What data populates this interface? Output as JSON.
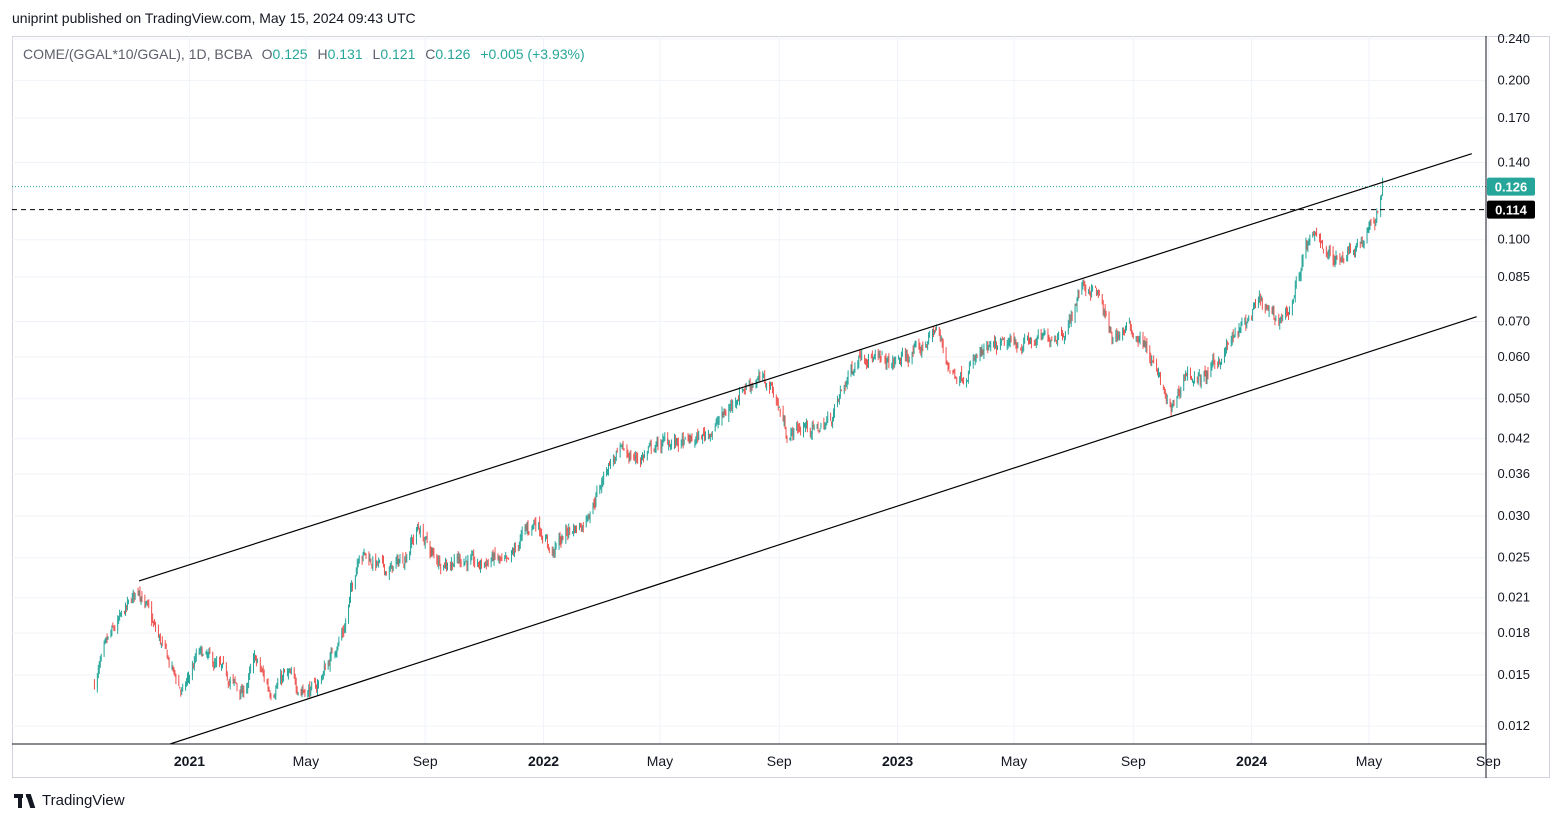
{
  "header": {
    "published_text": "uniprint published on TradingView.com, May 15, 2024 09:43 UTC"
  },
  "legend": {
    "symbol": "COME/(GGAL*10/GGAL), 1D, BCBA",
    "o_label": "O",
    "o_value": "0.125",
    "h_label": "H",
    "h_value": "0.131",
    "l_label": "L",
    "l_value": "0.121",
    "c_label": "C",
    "c_value": "0.126",
    "change": "+0.005 (+3.93%)"
  },
  "price_labels": {
    "last": {
      "text": "0.126",
      "value": 0.126,
      "color": "#26a69a"
    },
    "line": {
      "text": "0.114",
      "value": 0.114,
      "color": "#000000"
    }
  },
  "chart_data": {
    "type": "candlestick",
    "scale": "log",
    "ylim": [
      0.0111,
      0.243
    ],
    "xlim": [
      "2020-09-25",
      "2024-09-01"
    ],
    "y_ticks": [
      "0.240",
      "0.200",
      "0.170",
      "0.140",
      "0.100",
      "0.085",
      "0.070",
      "0.060",
      "0.050",
      "0.042",
      "0.036",
      "0.030",
      "0.025",
      "0.021",
      "0.018",
      "0.015",
      "0.012"
    ],
    "x_ticks": [
      {
        "label": "2021",
        "date": "2021-01-01",
        "bold": true
      },
      {
        "label": "May",
        "date": "2021-05-01",
        "bold": false
      },
      {
        "label": "Sep",
        "date": "2021-09-01",
        "bold": false
      },
      {
        "label": "2022",
        "date": "2022-01-01",
        "bold": true
      },
      {
        "label": "May",
        "date": "2022-05-01",
        "bold": false
      },
      {
        "label": "Sep",
        "date": "2022-09-01",
        "bold": false
      },
      {
        "label": "2023",
        "date": "2023-01-01",
        "bold": true
      },
      {
        "label": "May",
        "date": "2023-05-01",
        "bold": false
      },
      {
        "label": "Sep",
        "date": "2023-09-01",
        "bold": false
      },
      {
        "label": "2024",
        "date": "2024-01-01",
        "bold": true
      },
      {
        "label": "May",
        "date": "2024-05-01",
        "bold": false
      },
      {
        "label": "Sep",
        "date": "2024-09-01",
        "bold": false
      }
    ],
    "close_path": [
      [
        "2020-09-25",
        0.0145
      ],
      [
        "2020-10-10",
        0.0175
      ],
      [
        "2020-10-25",
        0.0195
      ],
      [
        "2020-11-10",
        0.022
      ],
      [
        "2020-11-25",
        0.0185
      ],
      [
        "2020-12-10",
        0.016
      ],
      [
        "2020-12-25",
        0.0138
      ],
      [
        "2021-01-10",
        0.0165
      ],
      [
        "2021-01-25",
        0.0158
      ],
      [
        "2021-02-10",
        0.0148
      ],
      [
        "2021-02-25",
        0.0138
      ],
      [
        "2021-03-10",
        0.016
      ],
      [
        "2021-03-25",
        0.014
      ],
      [
        "2021-04-10",
        0.015
      ],
      [
        "2021-04-25",
        0.0142
      ],
      [
        "2021-05-10",
        0.014
      ],
      [
        "2021-05-25",
        0.016
      ],
      [
        "2021-06-10",
        0.0185
      ],
      [
        "2021-06-25",
        0.026
      ],
      [
        "2021-07-10",
        0.0245
      ],
      [
        "2021-07-25",
        0.0235
      ],
      [
        "2021-08-10",
        0.025
      ],
      [
        "2021-08-25",
        0.0285
      ],
      [
        "2021-09-10",
        0.025
      ],
      [
        "2021-09-25",
        0.0245
      ],
      [
        "2021-10-10",
        0.025
      ],
      [
        "2021-10-25",
        0.024
      ],
      [
        "2021-11-10",
        0.025
      ],
      [
        "2021-11-25",
        0.024
      ],
      [
        "2021-12-10",
        0.0275
      ],
      [
        "2021-12-25",
        0.0295
      ],
      [
        "2022-01-10",
        0.0255
      ],
      [
        "2022-01-25",
        0.028
      ],
      [
        "2022-02-10",
        0.029
      ],
      [
        "2022-02-25",
        0.033
      ],
      [
        "2022-03-10",
        0.038
      ],
      [
        "2022-03-25",
        0.0395
      ],
      [
        "2022-04-10",
        0.0385
      ],
      [
        "2022-04-25",
        0.0405
      ],
      [
        "2022-05-10",
        0.0415
      ],
      [
        "2022-05-25",
        0.041
      ],
      [
        "2022-06-10",
        0.042
      ],
      [
        "2022-06-25",
        0.044
      ],
      [
        "2022-07-10",
        0.0475
      ],
      [
        "2022-07-25",
        0.0525
      ],
      [
        "2022-08-10",
        0.0545
      ],
      [
        "2022-08-25",
        0.0525
      ],
      [
        "2022-09-10",
        0.0425
      ],
      [
        "2022-09-25",
        0.0445
      ],
      [
        "2022-10-10",
        0.0435
      ],
      [
        "2022-10-25",
        0.046
      ],
      [
        "2022-11-10",
        0.0545
      ],
      [
        "2022-11-25",
        0.062
      ],
      [
        "2022-12-10",
        0.059
      ],
      [
        "2022-12-25",
        0.058
      ],
      [
        "2023-01-10",
        0.06
      ],
      [
        "2023-01-25",
        0.062
      ],
      [
        "2023-02-10",
        0.068
      ],
      [
        "2023-02-25",
        0.056
      ],
      [
        "2023-03-10",
        0.0555
      ],
      [
        "2023-03-25",
        0.06
      ],
      [
        "2023-04-10",
        0.062
      ],
      [
        "2023-04-25",
        0.063
      ],
      [
        "2023-05-10",
        0.064
      ],
      [
        "2023-05-25",
        0.064
      ],
      [
        "2023-06-10",
        0.066
      ],
      [
        "2023-06-25",
        0.068
      ],
      [
        "2023-07-10",
        0.082
      ],
      [
        "2023-07-25",
        0.08
      ],
      [
        "2023-08-10",
        0.065
      ],
      [
        "2023-08-25",
        0.068
      ],
      [
        "2023-09-10",
        0.065
      ],
      [
        "2023-09-25",
        0.056
      ],
      [
        "2023-10-10",
        0.047
      ],
      [
        "2023-10-25",
        0.056
      ],
      [
        "2023-11-10",
        0.054
      ],
      [
        "2023-11-25",
        0.058
      ],
      [
        "2023-12-10",
        0.064
      ],
      [
        "2023-12-25",
        0.069
      ],
      [
        "2024-01-10",
        0.076
      ],
      [
        "2024-01-25",
        0.07
      ],
      [
        "2024-02-10",
        0.074
      ],
      [
        "2024-02-25",
        0.096
      ],
      [
        "2024-03-10",
        0.102
      ],
      [
        "2024-03-25",
        0.091
      ],
      [
        "2024-04-10",
        0.096
      ],
      [
        "2024-04-25",
        0.1
      ],
      [
        "2024-05-08",
        0.109
      ],
      [
        "2024-05-15",
        0.126
      ]
    ],
    "channel_lines": [
      {
        "name": "upper",
        "from": [
          "2020-11-10",
          0.0226
        ],
        "to": [
          "2024-08-15",
          0.1455
        ]
      },
      {
        "name": "lower",
        "from": [
          "2020-12-12",
          0.0111
        ],
        "to": [
          "2024-08-20",
          0.0715
        ]
      }
    ],
    "horizontal_lines": [
      {
        "name": "dashed-level",
        "value": 0.114,
        "style": "dashed"
      },
      {
        "name": "last-price",
        "value": 0.126,
        "style": "dotted"
      }
    ],
    "colors": {
      "up": "#26a69a",
      "down": "#ef5350",
      "grid": "#f0f3fa"
    }
  },
  "brand": {
    "text": "TradingView"
  }
}
